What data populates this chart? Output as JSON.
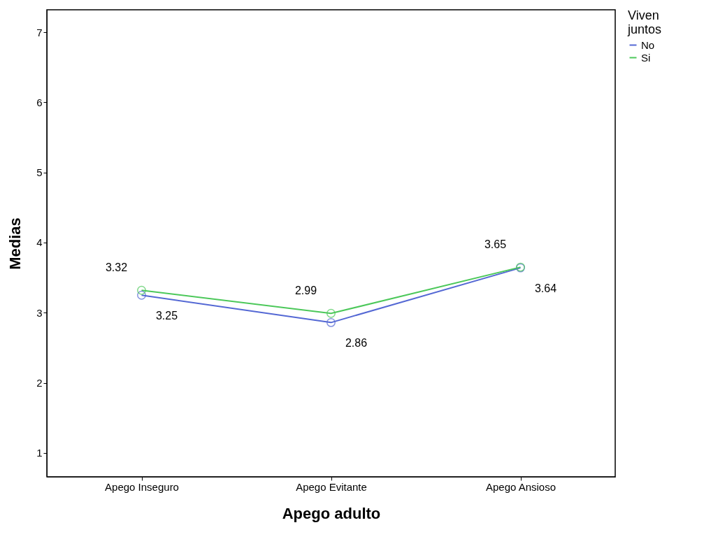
{
  "chart_data": {
    "type": "line",
    "xlabel": "Apego adulto",
    "ylabel": "Medias",
    "legend_title": "Viven juntos",
    "categories": [
      "Apego Inseguro",
      "Apego Evitante",
      "Apego Ansioso"
    ],
    "series": [
      {
        "name": "No",
        "color": "#5468d4",
        "values": [
          3.25,
          2.86,
          3.64
        ]
      },
      {
        "name": "Si",
        "color": "#4cc85a",
        "values": [
          3.32,
          2.99,
          3.65
        ]
      }
    ],
    "ylim": [
      0.66,
      7.32
    ],
    "yticks": [
      1,
      2,
      3,
      4,
      5,
      6,
      7
    ],
    "grid": false,
    "legend": "top right",
    "marker": "circle",
    "line_style": "solid",
    "data_labels": true
  }
}
